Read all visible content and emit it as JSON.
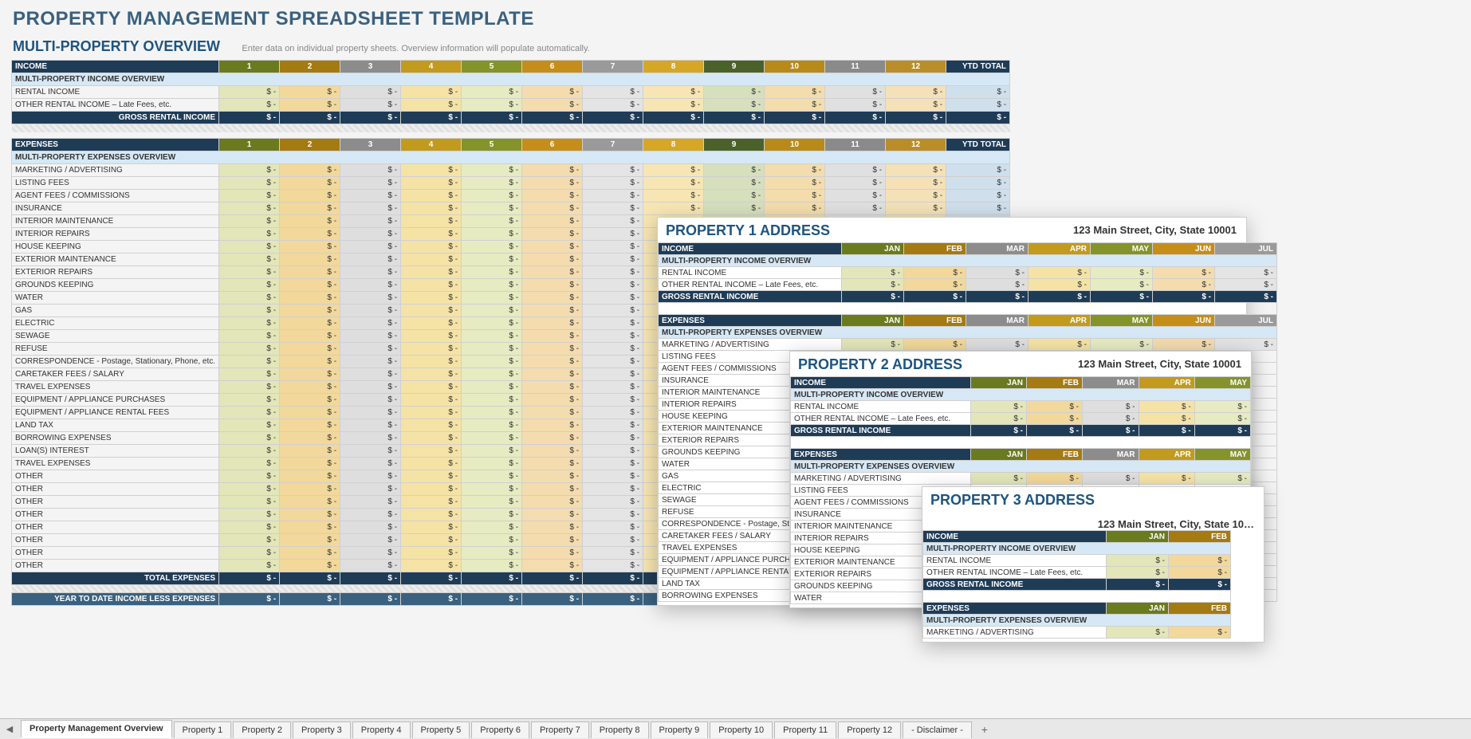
{
  "page_title": "PROPERTY MANAGEMENT SPREADSHEET TEMPLATE",
  "section_title": "MULTI-PROPERTY OVERVIEW",
  "section_hint": "Enter data on individual property sheets.  Overview information will populate automatically.",
  "months": [
    "1",
    "2",
    "3",
    "4",
    "5",
    "6",
    "7",
    "8",
    "9",
    "10",
    "11",
    "12"
  ],
  "month_names": [
    "JAN",
    "FEB",
    "MAR",
    "APR",
    "MAY",
    "JUN",
    "JUL"
  ],
  "month_names_short": [
    "JAN",
    "FEB",
    "MAR",
    "APR",
    "MAY"
  ],
  "ytd_label": "YTD TOTAL",
  "income_header": "INCOME",
  "income_subheader": "MULTI-PROPERTY INCOME OVERVIEW",
  "income_rows": [
    "RENTAL INCOME",
    "OTHER RENTAL INCOME  – Late Fees, etc."
  ],
  "gross_label": "GROSS RENTAL INCOME",
  "expenses_header": "EXPENSES",
  "expenses_subheader": "MULTI-PROPERTY EXPENSES OVERVIEW",
  "expense_rows": [
    "MARKETING / ADVERTISING",
    "LISTING FEES",
    "AGENT FEES / COMMISSIONS",
    "INSURANCE",
    "INTERIOR MAINTENANCE",
    "INTERIOR REPAIRS",
    "HOUSE KEEPING",
    "EXTERIOR MAINTENANCE",
    "EXTERIOR REPAIRS",
    "GROUNDS KEEPING",
    "WATER",
    "GAS",
    "ELECTRIC",
    "SEWAGE",
    "REFUSE",
    "CORRESPONDENCE - Postage, Stationary, Phone, etc.",
    "CARETAKER FEES / SALARY",
    "TRAVEL EXPENSES",
    "EQUIPMENT / APPLIANCE PURCHASES",
    "EQUIPMENT / APPLIANCE RENTAL FEES",
    "LAND TAX",
    "BORROWING EXPENSES",
    "LOAN(S) INTEREST",
    "TRAVEL EXPENSES",
    "OTHER",
    "OTHER",
    "OTHER",
    "OTHER",
    "OTHER",
    "OTHER",
    "OTHER",
    "OTHER"
  ],
  "total_expenses_label": "TOTAL EXPENSES",
  "ytd_less_label": "YEAR TO DATE INCOME LESS EXPENSES",
  "cell_value": "$            -",
  "property1": {
    "title": "PROPERTY 1 ADDRESS",
    "addr": "123 Main Street, City, State  10001",
    "expense_rows": [
      "MARKETING / ADVERTISING",
      "LISTING FEES",
      "AGENT FEES / COMMISSIONS",
      "INSURANCE",
      "INTERIOR MAINTENANCE",
      "INTERIOR REPAIRS",
      "HOUSE KEEPING",
      "EXTERIOR MAINTENANCE",
      "EXTERIOR REPAIRS",
      "GROUNDS KEEPING",
      "WATER",
      "GAS",
      "ELECTRIC",
      "SEWAGE",
      "REFUSE",
      "CORRESPONDENCE - Postage, Stati…",
      "CARETAKER FEES / SALARY",
      "TRAVEL EXPENSES",
      "EQUIPMENT / APPLIANCE PURCHASE…",
      "EQUIPMENT / APPLIANCE RENTAL F…",
      "LAND TAX",
      "BORROWING EXPENSES"
    ]
  },
  "property2": {
    "title": "PROPERTY 2 ADDRESS",
    "addr": "123 Main Street, City, State  10001",
    "expense_rows": [
      "MARKETING / ADVERTISING",
      "LISTING FEES",
      "AGENT FEES / COMMISSIONS",
      "INSURANCE",
      "INTERIOR MAINTENANCE",
      "INTERIOR REPAIRS",
      "HOUSE KEEPING",
      "EXTERIOR MAINTENANCE",
      "EXTERIOR REPAIRS",
      "GROUNDS KEEPING",
      "WATER"
    ]
  },
  "property3": {
    "title": "PROPERTY 3 ADDRESS",
    "addr": "123 Main Street, City, State  10…",
    "expense_rows": []
  },
  "tabs": [
    "Property Management Overview",
    "Property 1",
    "Property 2",
    "Property 3",
    "Property 4",
    "Property 5",
    "Property 6",
    "Property 7",
    "Property 8",
    "Property 9",
    "Property 10",
    "Property 11",
    "Property 12",
    "- Disclaimer -"
  ],
  "palette": {
    "header_bg": "#1f3c57",
    "header_fg": "#ffffff",
    "subheader_bg": "#d6e8f5",
    "month_hdr": [
      "#6a7a1e",
      "#a47a12",
      "#8c8c8c",
      "#c29a1e",
      "#85932b",
      "#c58e1a",
      "#9a9a9a",
      "#d6a626",
      "#4b612a",
      "#b88a1a",
      "#8a8a8a",
      "#b98e2a"
    ],
    "month_body": [
      "#e2e6b8",
      "#f2d89a",
      "#dedede",
      "#f5e3a6",
      "#e6ebc2",
      "#f4dcae",
      "#e4e4e4",
      "#f7e6b3",
      "#d6e0bc",
      "#f3ddac",
      "#e0e0e0",
      "#f4e1b7"
    ],
    "ytd_body": "#cfe0ec"
  }
}
